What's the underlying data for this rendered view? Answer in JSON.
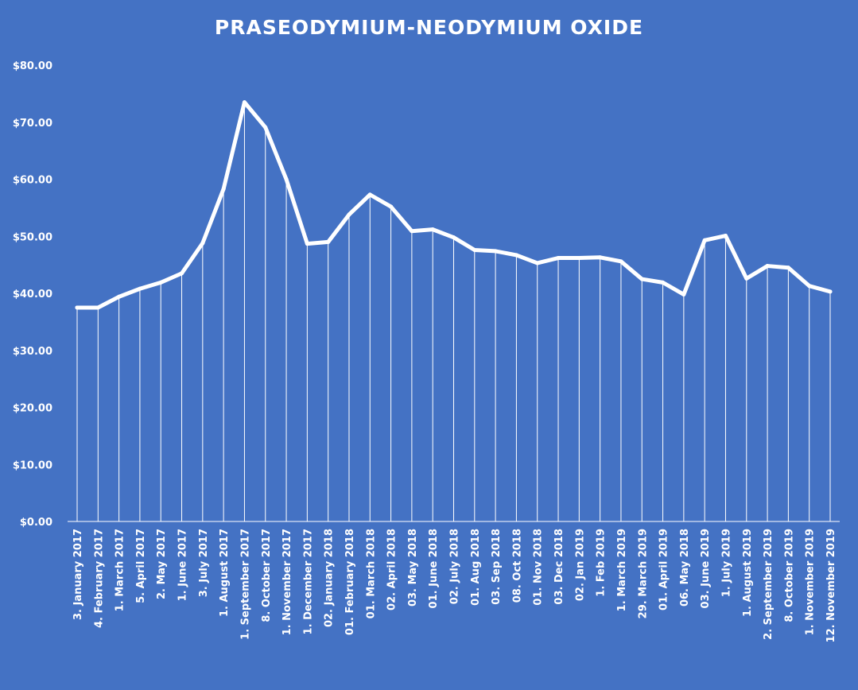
{
  "chart_data": {
    "type": "line",
    "title": "PRASEODYMIUM-NEODYMIUM  OXIDE",
    "xlabel": "",
    "ylabel": "",
    "ylim": [
      0,
      80
    ],
    "y_ticks": [
      "$0.00",
      "$10.00",
      "$20.00",
      "$30.00",
      "$40.00",
      "$50.00",
      "$60.00",
      "$70.00",
      "$80.00"
    ],
    "grid": false,
    "drop_lines": true,
    "colors": {
      "background": "#4472C4",
      "line": "#FFFFFF",
      "text": "#FFFFFF"
    },
    "categories": [
      "3. January 2017",
      "4. February 2017",
      "1. March 2017",
      "5. April 2017",
      "2. May 2017",
      "1. June 2017",
      "3. July 2017",
      "1. August 2017",
      "1. September 2017",
      "8. October 2017",
      "1. November 2017",
      "1. December 2017",
      "02. January 2018",
      "01. February 2018",
      "01. March 2018",
      "02. April 2018",
      "03. May 2018",
      "01. June 2018",
      "02. July 2018",
      "01. Aug 2018",
      "03. Sep 2018",
      "08. Oct 2018",
      "01. Nov 2018",
      "03. Dec 2018",
      "02. Jan 2019",
      "1. Feb 2019",
      "1. March 2019",
      "29. March 2019",
      "01. April 2019",
      "06. May 2018",
      "03. June 2019",
      "1. July 2019",
      "1. August 2019",
      "2. September 2019",
      "8. October 2019",
      "1. November 2019",
      "12. November 2019"
    ],
    "values": [
      37.5,
      37.5,
      39.4,
      40.8,
      41.9,
      43.5,
      48.8,
      58.3,
      73.5,
      69.1,
      60.0,
      48.7,
      49.0,
      53.8,
      57.3,
      55.2,
      50.9,
      51.2,
      49.8,
      47.6,
      47.4,
      46.7,
      45.3,
      46.2,
      46.2,
      46.3,
      45.6,
      42.5,
      41.9,
      39.8,
      49.3,
      50.1,
      42.6,
      44.8,
      44.5,
      41.3,
      40.3
    ]
  }
}
